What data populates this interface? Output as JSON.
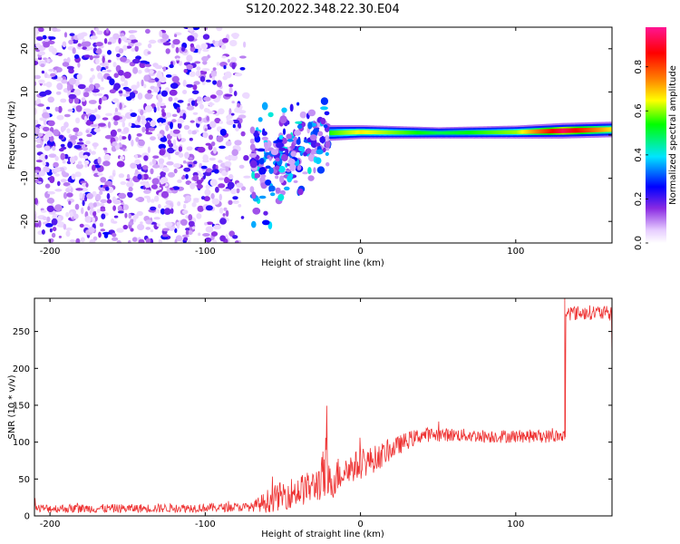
{
  "title": "S120.2022.348.22.30.E04",
  "chart_data": [
    {
      "type": "heatmap",
      "xlabel": "Height of straight line (km)",
      "ylabel": "Frequency (Hz)",
      "xlim": [
        -210,
        162
      ],
      "ylim": [
        -25,
        25
      ],
      "xticks": [
        -200,
        -100,
        0,
        100
      ],
      "yticks": [
        -20,
        -10,
        0,
        10,
        20
      ],
      "colorbar": {
        "label": "Normalized spectral amplitude",
        "range": [
          0,
          0.98
        ],
        "ticks": [
          0.0,
          0.2,
          0.4,
          0.6,
          0.8
        ],
        "colors": [
          "#ffffff",
          "#e6ccff",
          "#8a2be2",
          "#0000ff",
          "#00e5ff",
          "#00ff00",
          "#ffff00",
          "#ff8000",
          "#ff0000",
          "#ff1493"
        ]
      },
      "noise_region": {
        "x": [
          -210,
          -70
        ],
        "f": [
          -25,
          25
        ]
      },
      "transition_region": {
        "x": [
          -70,
          -20
        ],
        "f_center": [
          -8,
          0
        ],
        "f_spread": 6
      },
      "band": [
        {
          "x": -20,
          "f": 0.5,
          "halfwidth": 1.8,
          "amp": 0.5
        },
        {
          "x": 0,
          "f": 0.7,
          "halfwidth": 1.6,
          "amp": 0.6
        },
        {
          "x": 50,
          "f": 0.5,
          "halfwidth": 1.3,
          "amp": 0.45
        },
        {
          "x": 100,
          "f": 0.7,
          "halfwidth": 1.5,
          "amp": 0.55
        },
        {
          "x": 130,
          "f": 1.0,
          "halfwidth": 1.8,
          "amp": 0.85
        },
        {
          "x": 162,
          "f": 1.3,
          "halfwidth": 1.8,
          "amp": 0.6
        }
      ]
    },
    {
      "type": "line",
      "xlabel": "Height of straight line (km)",
      "ylabel": "SNR (10 * v/v)",
      "xlim": [
        -210,
        162
      ],
      "ylim": [
        0,
        295
      ],
      "xticks": [
        -200,
        -100,
        0,
        100
      ],
      "yticks": [
        0,
        50,
        100,
        150,
        200,
        250
      ],
      "color": "#ee3333",
      "series": [
        {
          "x": [
            -210,
            -150,
            -100,
            -70,
            -60,
            -50,
            -40,
            -30,
            -25,
            -22,
            -20,
            -15,
            -10,
            0,
            10,
            20,
            30,
            40,
            60,
            80,
            100,
            120,
            131,
            132,
            140,
            150,
            162
          ],
          "y": [
            10,
            10,
            11,
            12,
            20,
            28,
            34,
            40,
            50,
            60,
            42,
            55,
            62,
            70,
            78,
            90,
            102,
            110,
            110,
            108,
            108,
            108,
            108,
            275,
            275,
            276,
            274
          ],
          "noise": [
            6,
            6,
            6,
            6,
            16,
            20,
            22,
            22,
            30,
            55,
            25,
            25,
            22,
            20,
            18,
            14,
            12,
            10,
            9,
            9,
            9,
            9,
            9,
            10,
            10,
            10,
            10
          ]
        }
      ]
    }
  ]
}
